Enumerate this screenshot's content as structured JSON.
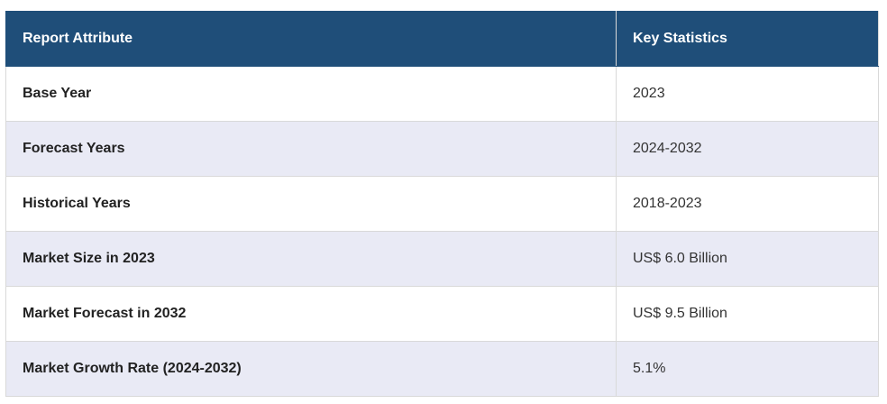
{
  "table": {
    "header": [
      "Report Attribute",
      "Key Statistics"
    ],
    "rows": [
      [
        "Base Year",
        "2023"
      ],
      [
        "Forecast Years",
        "2024-2032"
      ],
      [
        "Historical Years",
        "2018-2023"
      ],
      [
        "Market Size in 2023",
        "US$ 6.0 Billion"
      ],
      [
        "Market Forecast in 2032",
        "US$ 9.5 Billion"
      ],
      [
        "Market Growth Rate (2024-2032)",
        "5.1%"
      ]
    ]
  }
}
